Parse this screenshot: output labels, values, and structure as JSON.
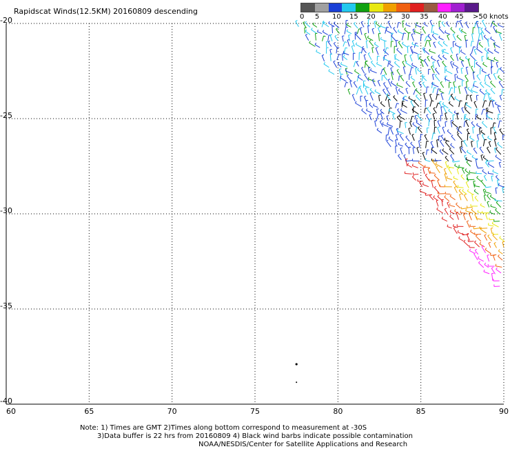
{
  "title": "Rapidscat Winds(12.5KM) 20160809 descending",
  "legend": {
    "colors": [
      "#555555",
      "#a0a0a0",
      "#1a3fd6",
      "#22c8ee",
      "#10a010",
      "#e8e810",
      "#f0a000",
      "#f06010",
      "#e02020",
      "#9a5a40",
      "#ff20ff",
      "#a020d0",
      "#5a1a8a"
    ],
    "labels": [
      "0",
      "5",
      "10",
      "15",
      "20",
      "25",
      "30",
      "35",
      "40",
      "45",
      ">50 knots"
    ]
  },
  "map": {
    "lon_range": [
      60,
      90
    ],
    "lat_range": [
      -40,
      -20
    ],
    "x_ticks": [
      "60",
      "65",
      "70",
      "75",
      "80",
      "85",
      "90"
    ],
    "y_ticks": [
      "-20",
      "-25",
      "-30",
      "-35",
      "-40"
    ],
    "gridlines": true
  },
  "note": {
    "line1": "Note: 1) Times are GMT 2)Times along bottom correspond to measurement at -30S",
    "line2": "3)Data buffer is 22 hrs from 20160809 4) Black wind barbs indicate possible contamination",
    "line3": "NOAA/NESDIS/Center for Satellite Applications and Research"
  }
}
